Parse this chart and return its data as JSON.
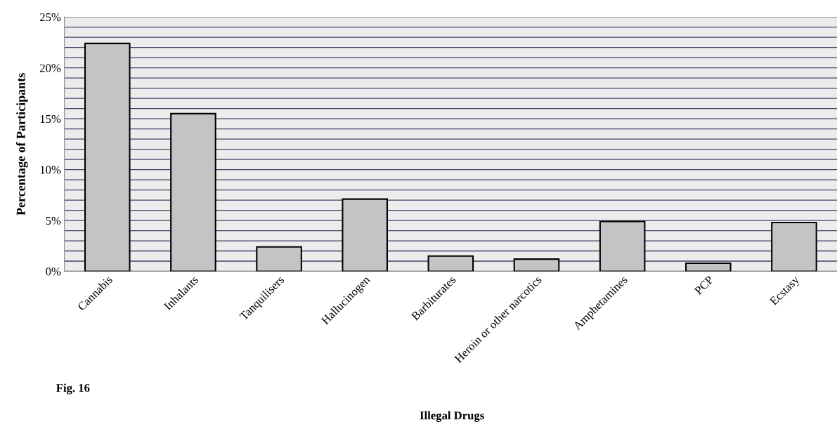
{
  "chart_data": {
    "type": "bar",
    "xlabel": "Illegal Drugs",
    "ylabel": "Percentage of Participants",
    "categories": [
      "Cannabis",
      "Inhalants",
      "Tanquilisers",
      "Hallucinogen",
      "Barbiturates",
      "Heroin or other narcotics",
      "Amphetamines",
      "PCP",
      "Ecstasy"
    ],
    "values": [
      22.4,
      15.5,
      2.4,
      7.1,
      1.5,
      1.2,
      4.9,
      0.8,
      4.8
    ],
    "color": "#c4c4c4",
    "ylim": [
      0,
      25
    ],
    "yticks": [
      {
        "value": 0,
        "label": "0%"
      },
      {
        "value": 1,
        "label": null
      },
      {
        "value": 2,
        "label": null
      },
      {
        "value": 3,
        "label": null
      },
      {
        "value": 4,
        "label": null
      },
      {
        "value": 5,
        "label": "5%"
      },
      {
        "value": 6,
        "label": null
      },
      {
        "value": 7,
        "label": null
      },
      {
        "value": 8,
        "label": null
      },
      {
        "value": 9,
        "label": null
      },
      {
        "value": 10,
        "label": "10%"
      },
      {
        "value": 11,
        "label": null
      },
      {
        "value": 12,
        "label": null
      },
      {
        "value": 13,
        "label": null
      },
      {
        "value": 14,
        "label": null
      },
      {
        "value": 15,
        "label": "15%"
      },
      {
        "value": 16,
        "label": null
      },
      {
        "value": 17,
        "label": null
      },
      {
        "value": 18,
        "label": null
      },
      {
        "value": 19,
        "label": null
      },
      {
        "value": 20,
        "label": "20%"
      },
      {
        "value": 21,
        "label": null
      },
      {
        "value": 22,
        "label": null
      },
      {
        "value": 23,
        "label": null
      },
      {
        "value": 24,
        "label": null
      },
      {
        "value": 25,
        "label": "25%"
      }
    ],
    "grid": "y",
    "annotations": [
      "Fig. 16"
    ]
  }
}
